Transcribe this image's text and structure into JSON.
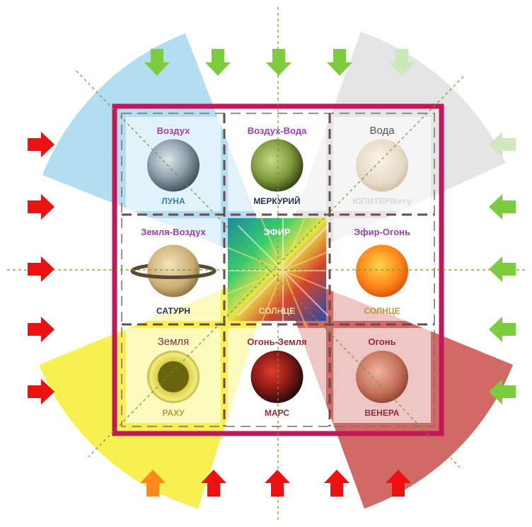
{
  "cells": [
    {
      "title": "Воздух",
      "planet": "ЛУНА"
    },
    {
      "title": "Воздух-Вода",
      "planet": "МЕРКУРИЙ"
    },
    {
      "title": "Вода",
      "planet": "ЮПИТЕР/Кету"
    },
    {
      "title": "Земля-Воздух",
      "planet": "САТУРН"
    },
    {
      "title": "ЭФИР",
      "planet": "СОЛНЦЕ"
    },
    {
      "title": "Эфир-Огонь",
      "planet": "СОЛНЦЕ"
    },
    {
      "title": "Земля",
      "planet": "РАХУ"
    },
    {
      "title": "Огонь-Земля",
      "planet": "МАРС"
    },
    {
      "title": "Огонь",
      "planet": "ВЕНЕРА"
    }
  ],
  "colors": {
    "air": "#a6d8f0",
    "water": "#dcdcdc",
    "earth": "#f5ee33",
    "fire": "#c9504a",
    "frame": "#c2185b",
    "arrow_red": "#ee1111",
    "arrow_green": "#7ccc3e",
    "arrow_orange": "#ff8a1a",
    "guide": "#6a9a2a",
    "title_purple": "#9b3fb5",
    "name_blue": "#2a86b8",
    "name_navy": "#23325a",
    "name_maroon": "#8c2f3a",
    "name_gold": "#b89a3a"
  },
  "arrows": {
    "top": [
      "#7ccc3e",
      "#7ccc3e",
      "#7ccc3e",
      "#7ccc3e",
      "#cde8b8"
    ],
    "left": [
      "#ee1111",
      "#ee1111",
      "#ee1111",
      "#ee1111",
      "#ee1111"
    ],
    "right": [
      "#cfe8c0",
      "#7ccc3e",
      "#7ccc3e",
      "#7ccc3e",
      "#7ccc3e"
    ],
    "bottom": [
      "#ff8a1a",
      "#ee1111",
      "#ee1111",
      "#ee1111",
      "#ee1111"
    ]
  }
}
